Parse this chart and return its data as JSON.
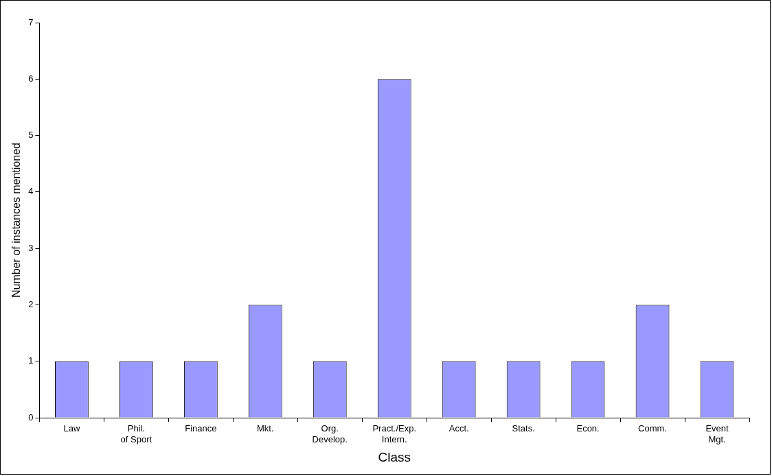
{
  "chart_data": {
    "type": "bar",
    "xlabel": "Class",
    "ylabel": "Number of instances mentioned",
    "categories": [
      "Law",
      "Phil.\nof Sport",
      "Finance",
      "Mkt.",
      "Org.\nDevelop.",
      "Pract./Exp.\nIntern.",
      "Acct.",
      "Stats.",
      "Econ.",
      "Comm.",
      "Event\nMgt."
    ],
    "values": [
      1,
      1,
      1,
      2,
      1,
      6,
      1,
      1,
      1,
      2,
      1
    ],
    "color": "#9999ff",
    "ylim": [
      0,
      7
    ],
    "yticks": [
      0,
      1,
      2,
      3,
      4,
      5,
      6,
      7
    ],
    "grid": false,
    "legend": false
  }
}
